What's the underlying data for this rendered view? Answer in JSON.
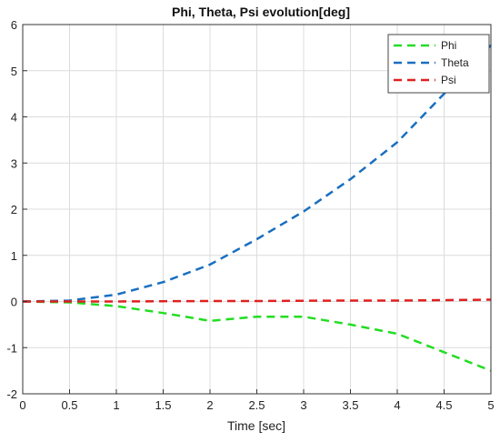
{
  "chart_data": {
    "type": "line",
    "title": "Phi, Theta, Psi evolution[deg]",
    "xlabel": "Time [sec]",
    "ylabel": "",
    "xlim": [
      0,
      5
    ],
    "ylim": [
      -2,
      6
    ],
    "xticks": [
      "0",
      "0.5",
      "1",
      "1.5",
      "2",
      "2.5",
      "3",
      "3.5",
      "4",
      "4.5",
      "5"
    ],
    "yticks": [
      "-2",
      "-1",
      "0",
      "1",
      "2",
      "3",
      "4",
      "5",
      "6"
    ],
    "grid": true,
    "legend_position": "top-right",
    "series": [
      {
        "name": "Phi",
        "color": "#22dd22",
        "x": [
          0,
          0.5,
          1,
          1.5,
          2,
          2.5,
          3,
          3.5,
          4,
          4.5,
          5
        ],
        "y": [
          0,
          -0.02,
          -0.1,
          -0.25,
          -0.42,
          -0.33,
          -0.33,
          -0.5,
          -0.7,
          -1.1,
          -1.5
        ]
      },
      {
        "name": "Theta",
        "color": "#1a6fc0",
        "x": [
          0,
          0.5,
          1,
          1.5,
          2,
          2.5,
          3,
          3.5,
          4,
          4.5,
          5
        ],
        "y": [
          0,
          0.02,
          0.15,
          0.42,
          0.8,
          1.35,
          1.95,
          2.65,
          3.45,
          4.5,
          5.55
        ]
      },
      {
        "name": "Psi",
        "color": "#e02020",
        "x": [
          0,
          0.5,
          1,
          1.5,
          2,
          2.5,
          3,
          3.5,
          4,
          4.5,
          5
        ],
        "y": [
          0,
          0,
          0,
          0.005,
          0.01,
          0.01,
          0.015,
          0.02,
          0.02,
          0.03,
          0.04
        ]
      }
    ]
  }
}
